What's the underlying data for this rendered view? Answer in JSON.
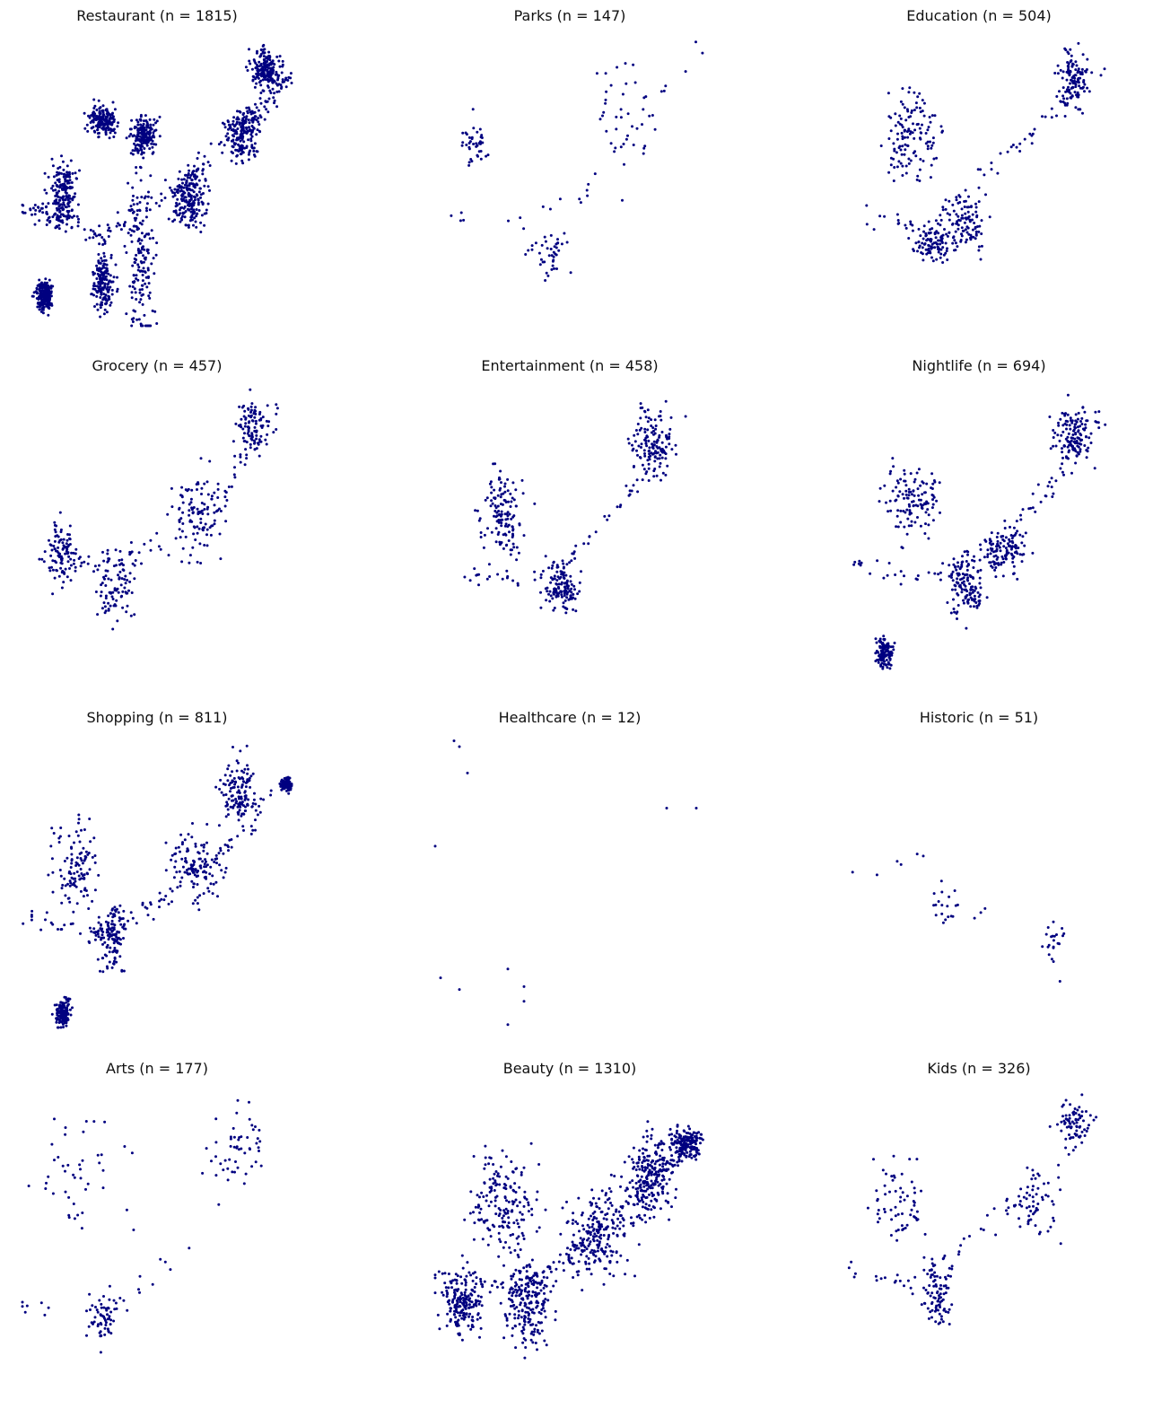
{
  "figure": {
    "marker_color": "#000080",
    "background": "#ffffff",
    "axes_visible": false
  },
  "chart_data": [
    {
      "type": "scatter",
      "title": "Restaurant (n = 1815)",
      "n": 1815,
      "clusters": [
        [
          0.44,
          0.77,
          0.05,
          0.3
        ],
        [
          0.3,
          0.85,
          0.04,
          0.1
        ],
        [
          0.62,
          0.58,
          0.06,
          0.1
        ],
        [
          0.82,
          0.35,
          0.06,
          0.09
        ],
        [
          0.15,
          0.55,
          0.05,
          0.1
        ],
        [
          0.08,
          0.9,
          0.03,
          0.06
        ],
        [
          0.9,
          0.12,
          0.05,
          0.06
        ],
        [
          0.45,
          0.35,
          0.05,
          0.06
        ],
        [
          0.3,
          0.3,
          0.05,
          0.05
        ]
      ],
      "trails": [
        [
          0.01,
          0.6
        ],
        [
          0.1,
          0.62
        ],
        [
          0.3,
          0.7
        ],
        [
          0.52,
          0.56
        ],
        [
          0.7,
          0.42
        ],
        [
          0.9,
          0.25
        ],
        [
          0.99,
          0.14
        ]
      ],
      "spread": 0.12,
      "min_x": 0.0,
      "extent_x": [
        0.0,
        1.0
      ],
      "extent_y": [
        0.0,
        1.0
      ]
    },
    {
      "type": "scatter",
      "title": "Parks (n = 147)",
      "n": 147,
      "clusters": [
        [
          0.43,
          0.75,
          0.07,
          0.09
        ],
        [
          0.15,
          0.38,
          0.05,
          0.08
        ],
        [
          0.7,
          0.3,
          0.1,
          0.2
        ]
      ],
      "trails": [
        [
          0.05,
          0.62
        ],
        [
          0.3,
          0.65
        ],
        [
          0.55,
          0.55
        ],
        [
          0.8,
          0.25
        ],
        [
          0.98,
          0.05
        ]
      ],
      "spread": 0.18,
      "extent_x": [
        0.0,
        1.0
      ],
      "extent_y": [
        0.0,
        1.0
      ]
    },
    {
      "type": "scatter",
      "title": "Education (n = 504)",
      "n": 504,
      "clusters": [
        [
          0.33,
          0.72,
          0.06,
          0.06
        ],
        [
          0.45,
          0.65,
          0.08,
          0.1
        ],
        [
          0.85,
          0.15,
          0.06,
          0.1
        ],
        [
          0.25,
          0.35,
          0.1,
          0.15
        ]
      ],
      "trails": [
        [
          0.05,
          0.6
        ],
        [
          0.3,
          0.7
        ],
        [
          0.55,
          0.45
        ],
        [
          0.75,
          0.3
        ],
        [
          0.98,
          0.08
        ]
      ],
      "spread": 0.14,
      "extent_x": [
        0.0,
        1.0
      ],
      "extent_y": [
        0.0,
        1.0
      ]
    },
    {
      "type": "scatter",
      "title": "Grocery (n = 457)",
      "n": 457,
      "clusters": [
        [
          0.35,
          0.7,
          0.07,
          0.12
        ],
        [
          0.15,
          0.58,
          0.06,
          0.1
        ],
        [
          0.65,
          0.45,
          0.1,
          0.15
        ],
        [
          0.85,
          0.15,
          0.06,
          0.1
        ]
      ],
      "trails": [
        [
          0.03,
          0.6
        ],
        [
          0.3,
          0.62
        ],
        [
          0.55,
          0.52
        ],
        [
          0.75,
          0.38
        ],
        [
          0.96,
          0.1
        ]
      ],
      "spread": 0.14,
      "extent_x": [
        0.0,
        1.0
      ],
      "extent_y": [
        0.0,
        1.0
      ]
    },
    {
      "type": "scatter",
      "title": "Entertainment (n = 458)",
      "n": 458,
      "clusters": [
        [
          0.47,
          0.7,
          0.06,
          0.08
        ],
        [
          0.25,
          0.45,
          0.08,
          0.15
        ],
        [
          0.8,
          0.2,
          0.08,
          0.12
        ]
      ],
      "trails": [
        [
          0.1,
          0.65
        ],
        [
          0.35,
          0.68
        ],
        [
          0.55,
          0.55
        ],
        [
          0.75,
          0.35
        ],
        [
          0.95,
          0.08
        ]
      ],
      "spread": 0.14,
      "extent_x": [
        0.0,
        1.0
      ],
      "extent_y": [
        0.0,
        1.0
      ]
    },
    {
      "type": "scatter",
      "title": "Nightlife (n = 694)",
      "n": 694,
      "clusters": [
        [
          0.45,
          0.7,
          0.06,
          0.1
        ],
        [
          0.6,
          0.58,
          0.07,
          0.08
        ],
        [
          0.25,
          0.4,
          0.1,
          0.12
        ],
        [
          0.85,
          0.18,
          0.07,
          0.1
        ],
        [
          0.15,
          0.92,
          0.03,
          0.05
        ]
      ],
      "trails": [
        [
          0.03,
          0.6
        ],
        [
          0.3,
          0.68
        ],
        [
          0.55,
          0.55
        ],
        [
          0.78,
          0.35
        ],
        [
          0.95,
          0.1
        ]
      ],
      "spread": 0.13,
      "extent_x": [
        0.0,
        1.0
      ],
      "extent_y": [
        0.0,
        1.0
      ]
    },
    {
      "type": "scatter",
      "title": "Shopping (n = 811)",
      "n": 811,
      "clusters": [
        [
          0.33,
          0.7,
          0.06,
          0.12
        ],
        [
          0.98,
          0.17,
          0.02,
          0.02
        ],
        [
          0.2,
          0.45,
          0.08,
          0.15
        ],
        [
          0.65,
          0.45,
          0.1,
          0.15
        ],
        [
          0.8,
          0.2,
          0.06,
          0.12
        ],
        [
          0.15,
          0.95,
          0.03,
          0.05
        ]
      ],
      "trails": [
        [
          0.02,
          0.62
        ],
        [
          0.25,
          0.68
        ],
        [
          0.5,
          0.58
        ],
        [
          0.75,
          0.4
        ],
        [
          0.97,
          0.17
        ]
      ],
      "spread": 0.12,
      "extent_x": [
        0.0,
        1.0
      ],
      "extent_y": [
        0.0,
        1.0
      ]
    },
    {
      "type": "scatter",
      "title": "Healthcare (n = 12)",
      "n": 12,
      "points": [
        [
          0.07,
          0.02
        ],
        [
          0.09,
          0.04
        ],
        [
          0.12,
          0.13
        ],
        [
          0.0,
          0.38
        ],
        [
          0.86,
          0.25
        ],
        [
          0.97,
          0.25
        ],
        [
          0.27,
          0.8
        ],
        [
          0.09,
          0.87
        ],
        [
          0.33,
          0.91
        ],
        [
          0.02,
          0.83
        ],
        [
          0.33,
          0.86
        ],
        [
          0.27,
          0.99
        ]
      ],
      "extent_x": [
        0.0,
        1.0
      ],
      "extent_y": [
        0.0,
        1.0
      ]
    },
    {
      "type": "scatter",
      "title": "Historic (n = 51)",
      "n": 51,
      "clusters": [
        [
          0.78,
          0.7,
          0.05,
          0.06
        ],
        [
          0.4,
          0.58,
          0.08,
          0.08
        ]
      ],
      "trails": [
        [
          0.0,
          0.5
        ],
        [
          0.3,
          0.4
        ],
        [
          0.55,
          0.65
        ],
        [
          0.85,
          0.85
        ]
      ],
      "spread": 0.2,
      "extent_x": [
        0.0,
        1.0
      ],
      "extent_y": [
        0.0,
        1.0
      ]
    },
    {
      "type": "scatter",
      "title": "Arts (n = 177)",
      "n": 177,
      "clusters": [
        [
          0.3,
          0.8,
          0.06,
          0.1
        ],
        [
          0.2,
          0.3,
          0.15,
          0.2
        ],
        [
          0.8,
          0.2,
          0.1,
          0.15
        ]
      ],
      "trails": [
        [
          0.0,
          0.75
        ],
        [
          0.3,
          0.8
        ],
        [
          0.6,
          0.55
        ],
        [
          0.9,
          0.15
        ]
      ],
      "spread": 0.16,
      "extent_x": [
        0.0,
        1.0
      ],
      "extent_y": [
        0.0,
        1.0
      ]
    },
    {
      "type": "scatter",
      "title": "Beauty (n = 1310)",
      "n": 1310,
      "clusters": [
        [
          0.35,
          0.75,
          0.08,
          0.15
        ],
        [
          0.25,
          0.4,
          0.12,
          0.2
        ],
        [
          0.6,
          0.5,
          0.12,
          0.15
        ],
        [
          0.8,
          0.3,
          0.08,
          0.15
        ],
        [
          0.1,
          0.75,
          0.08,
          0.1
        ],
        [
          0.93,
          0.2,
          0.05,
          0.05
        ]
      ],
      "trails": [
        [
          0.0,
          0.65
        ],
        [
          0.3,
          0.7
        ],
        [
          0.55,
          0.55
        ],
        [
          0.78,
          0.35
        ],
        [
          0.98,
          0.18
        ]
      ],
      "spread": 0.14,
      "extent_x": [
        0.0,
        1.0
      ],
      "extent_y": [
        0.0,
        1.0
      ]
    },
    {
      "type": "scatter",
      "title": "Kids (n = 326)",
      "n": 326,
      "clusters": [
        [
          0.35,
          0.7,
          0.06,
          0.12
        ],
        [
          0.2,
          0.4,
          0.1,
          0.18
        ],
        [
          0.7,
          0.4,
          0.1,
          0.12
        ],
        [
          0.85,
          0.12,
          0.06,
          0.08
        ]
      ],
      "trails": [
        [
          0.0,
          0.62
        ],
        [
          0.25,
          0.68
        ],
        [
          0.5,
          0.5
        ],
        [
          0.75,
          0.3
        ],
        [
          0.97,
          0.08
        ]
      ],
      "spread": 0.14,
      "extent_x": [
        0.0,
        1.0
      ],
      "extent_y": [
        0.0,
        1.0
      ]
    }
  ]
}
